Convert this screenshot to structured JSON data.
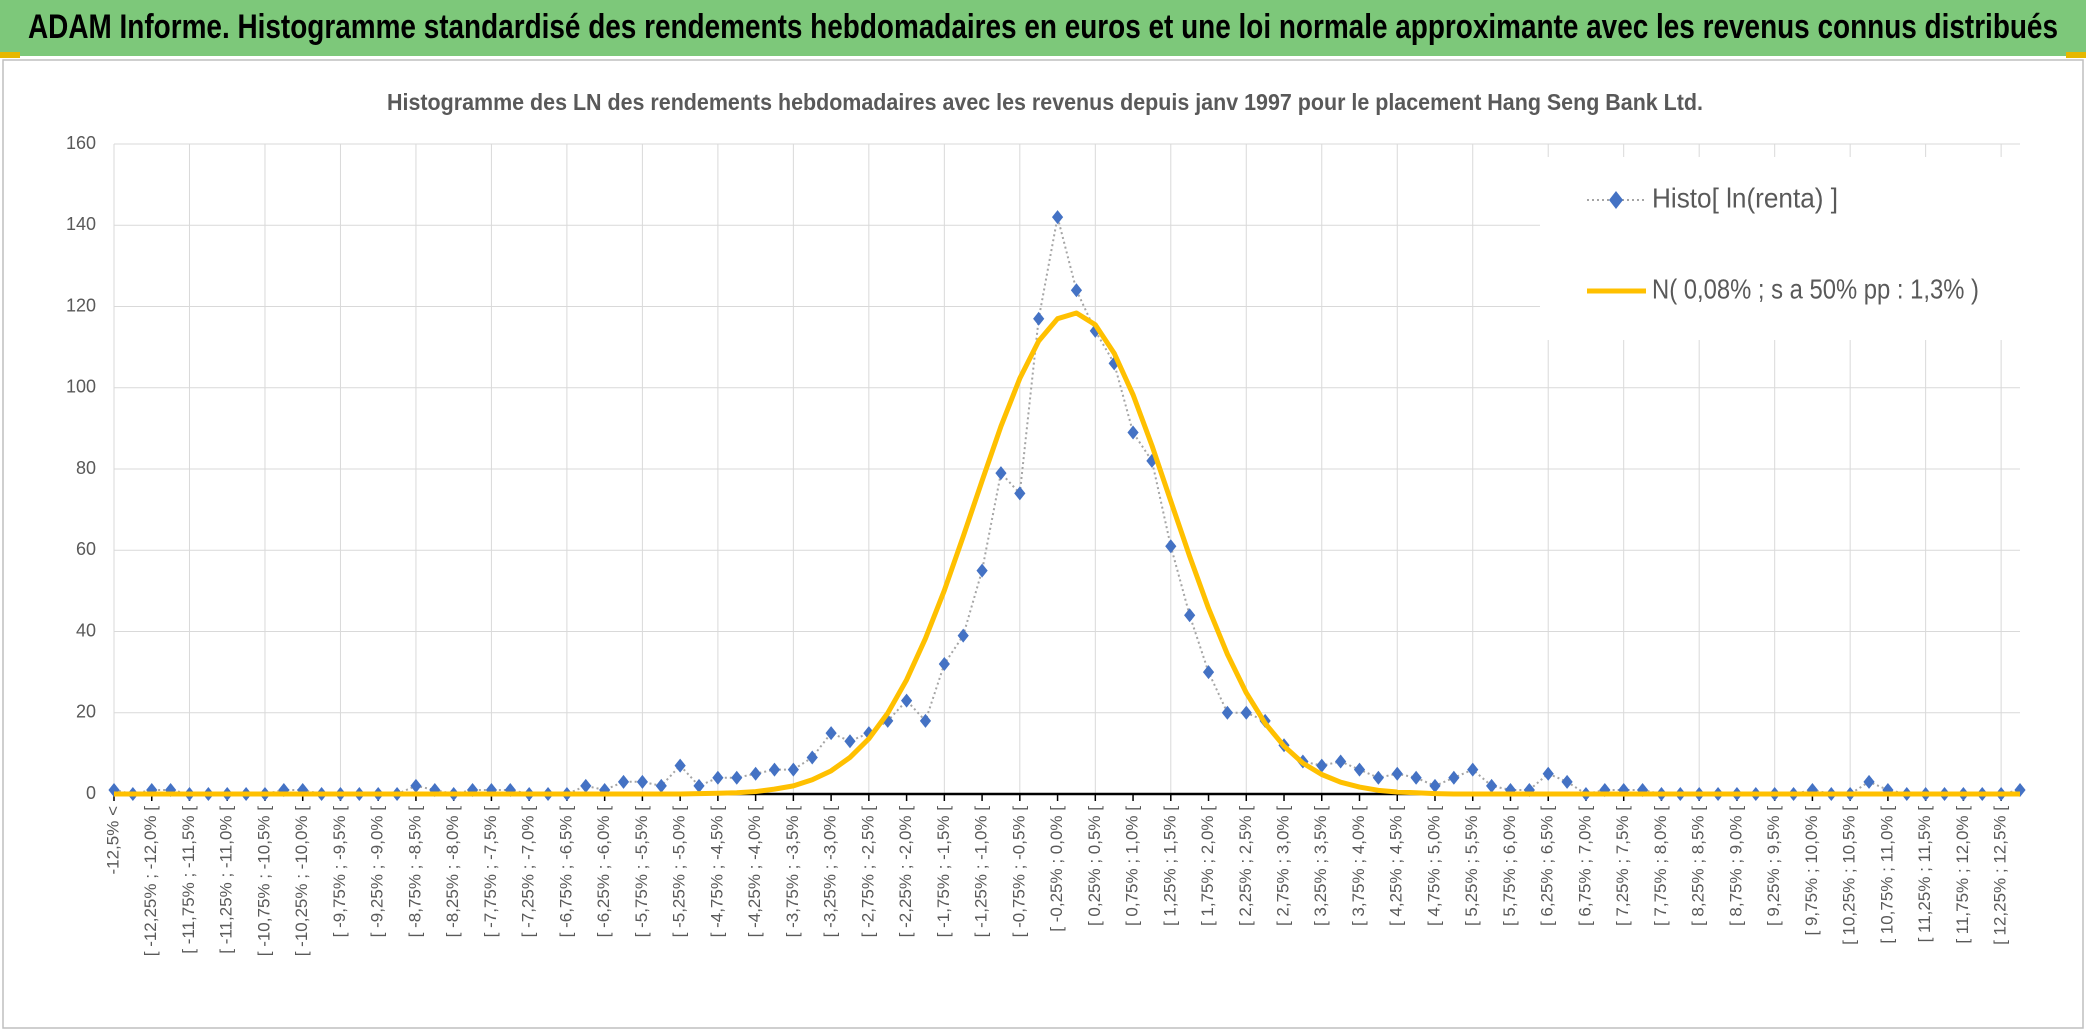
{
  "header": {
    "title": "ADAM Informe. Histogramme standardisé des rendements hebdomadaires en euros et une loi normale approximante avec les revenus connus distribués"
  },
  "chart_data": {
    "type": "line",
    "title": "Histogramme des LN des rendements hebdomadaires avec les revenus depuis janv 1997 pour le placement Hang Seng Bank Ltd.",
    "categories": [
      "-12,5% <",
      null,
      "[ -12,25% ; -12,0% [",
      null,
      "[ -11,75% ; -11,5% [",
      null,
      "[ -11,25% ; -11,0% [",
      null,
      "[ -10,75% ; -10,5% [",
      null,
      "[ -10,25% ; -10,0% [",
      null,
      "[ -9,75% ; -9,5% [",
      null,
      "[ -9,25% ; -9,0% [",
      null,
      "[ -8,75% ; -8,5% [",
      null,
      "[ -8,25% ; -8,0% [",
      null,
      "[ -7,75% ; -7,5% [",
      null,
      "[ -7,25% ; -7,0% [",
      null,
      "[ -6,75% ; -6,5% [",
      null,
      "[ -6,25% ; -6,0% [",
      null,
      "[ -5,75% ; -5,5% [",
      null,
      "[ -5,25% ; -5,0% [",
      null,
      "[ -4,75% ; -4,5% [",
      null,
      "[ -4,25% ; -4,0% [",
      null,
      "[ -3,75% ; -3,5% [",
      null,
      "[ -3,25% ; -3,0% [",
      null,
      "[ -2,75% ; -2,5% [",
      null,
      "[ -2,25% ; -2,0% [",
      null,
      "[ -1,75% ; -1,5% [",
      null,
      "[ -1,25% ; -1,0% [",
      null,
      "[ -0,75% ; -0,5% [",
      null,
      "[ -0,25% ; 0,0% [",
      null,
      "[ 0,25% ; 0,5% [",
      null,
      "[ 0,75% ; 1,0% [",
      null,
      "[ 1,25% ; 1,5% [",
      null,
      "[ 1,75% ; 2,0% [",
      null,
      "[ 2,25% ; 2,5% [",
      null,
      "[ 2,75% ; 3,0% [",
      null,
      "[ 3,25% ; 3,5% [",
      null,
      "[ 3,75% ; 4,0% [",
      null,
      "[ 4,25% ; 4,5% [",
      null,
      "[ 4,75% ; 5,0% [",
      null,
      "[ 5,25% ; 5,5% [",
      null,
      "[ 5,75% ; 6,0% [",
      null,
      "[ 6,25% ; 6,5% [",
      null,
      "[ 6,75% ; 7,0% [",
      null,
      "[ 7,25% ; 7,5% [",
      null,
      "[ 7,75% ; 8,0% [",
      null,
      "[ 8,25% ; 8,5% [",
      null,
      "[ 8,75% ; 9,0% [",
      null,
      "[ 9,25% ; 9,5% [",
      null,
      "[ 9,75% ; 10,0% [",
      null,
      "[ 10,25% ; 10,5% [",
      null,
      "[ 10,75% ; 11,0% [",
      null,
      "[ 11,25% ; 11,5% [",
      null,
      "[ 11,75% ; 12,0% [",
      null,
      "[ 12,25% ; 12,5% [",
      null
    ],
    "series": [
      {
        "name": "Histo[ ln(renta) ]",
        "color": "#4472c4",
        "line_color": "#a5a5a5",
        "values": [
          1,
          0,
          1,
          1,
          0,
          0,
          0,
          0,
          0,
          1,
          1,
          0,
          0,
          0,
          0,
          0,
          2,
          1,
          0,
          1,
          1,
          1,
          0,
          0,
          0,
          2,
          1,
          3,
          3,
          2,
          7,
          2,
          4,
          4,
          5,
          6,
          6,
          9,
          15,
          13,
          15,
          18,
          23,
          18,
          32,
          39,
          55,
          79,
          74,
          117,
          142,
          124,
          114,
          106,
          89,
          82,
          61,
          44,
          30,
          20,
          20,
          18,
          12,
          8,
          7,
          8,
          6,
          4,
          5,
          4,
          2,
          4,
          6,
          2,
          1,
          1,
          5,
          3,
          0,
          1,
          1,
          1,
          0,
          0,
          0,
          0,
          0,
          0,
          0,
          0,
          1,
          0,
          0,
          3,
          1,
          0,
          0,
          0,
          0,
          0,
          0,
          1
        ]
      },
      {
        "name": "N( 0,08% ; s a 50% pp : 1,3% )",
        "color": "#ffc000",
        "values": [
          0,
          0,
          0,
          0,
          0,
          0,
          0,
          0,
          0,
          0,
          0,
          0,
          0,
          0,
          0,
          0,
          0,
          0,
          0,
          0,
          0,
          0,
          0,
          0,
          0,
          0,
          0,
          0,
          0,
          0,
          0,
          0.1,
          0.2,
          0.3,
          0.6,
          1.2,
          2.0,
          3.5,
          5.7,
          9.0,
          13.6,
          19.9,
          28.1,
          38.3,
          50.1,
          63.4,
          77.1,
          90.5,
          102.3,
          111.5,
          117.0,
          118.4,
          115.5,
          108.5,
          98.3,
          85.8,
          72.1,
          58.5,
          45.7,
          34.4,
          24.9,
          17.4,
          11.8,
          7.6,
          4.8,
          2.9,
          1.7,
          0.9,
          0.5,
          0.3,
          0.1,
          0,
          0,
          0,
          0,
          0,
          0,
          0,
          0,
          0,
          0,
          0,
          0,
          0,
          0,
          0,
          0,
          0,
          0,
          0,
          0,
          0,
          0,
          0,
          0,
          0,
          0,
          0,
          0,
          0,
          0,
          0
        ]
      }
    ],
    "ylim": [
      0,
      160
    ],
    "yticks": [
      0,
      20,
      40,
      60,
      80,
      100,
      120,
      140,
      160
    ],
    "grid": true,
    "legend": "top-right"
  }
}
